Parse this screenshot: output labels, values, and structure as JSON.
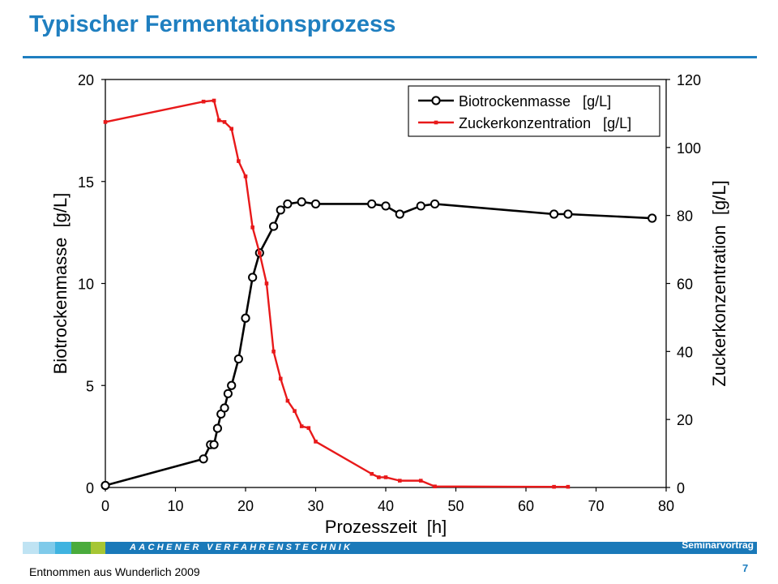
{
  "slide": {
    "title": "Typischer Fermentationsprozess",
    "brand": "AACHENER VERFAHRENSTECHNIK",
    "footer_right": "Seminarvortrag",
    "source": "Entnommen aus Wunderlich 2009",
    "page_number": "7",
    "accent_color": "#1f7fc0",
    "footer_colors": [
      "#bfe3f3",
      "#7fcaea",
      "#3fb3e0",
      "#4aab3c",
      "#a6c634"
    ]
  },
  "chart_data": {
    "type": "line",
    "xlabel": "Prozesszeit  [h]",
    "ylabel": "Biotrockenmasse  [g/L]",
    "y2label": "Zuckerkonzentration  [g/L]",
    "xlim": [
      0,
      80
    ],
    "ylim": [
      0,
      20
    ],
    "y2lim": [
      0,
      120
    ],
    "xticks": [
      "0",
      "10",
      "20",
      "30",
      "40",
      "50",
      "60",
      "70",
      "80"
    ],
    "yticks": [
      "0",
      "5",
      "10",
      "15",
      "20"
    ],
    "y2ticks": [
      "0",
      "20",
      "40",
      "60",
      "80",
      "100",
      "120"
    ],
    "legend_position": "top-right",
    "grid": false,
    "series": [
      {
        "name": "Biotrockenmasse   [g/L]",
        "axis": "left",
        "color": "#000000",
        "marker": "open-circle",
        "x": [
          0,
          14,
          15,
          15.5,
          16,
          16.5,
          17,
          17.5,
          18,
          19,
          20,
          21,
          22,
          24,
          25,
          26,
          28,
          30,
          38,
          40,
          42,
          45,
          47,
          64,
          66,
          78
        ],
        "y": [
          0.1,
          1.4,
          2.1,
          2.1,
          2.9,
          3.6,
          3.9,
          4.6,
          5.0,
          6.3,
          8.3,
          10.3,
          11.5,
          12.8,
          13.6,
          13.9,
          14.0,
          13.9,
          13.9,
          13.8,
          13.4,
          13.8,
          13.9,
          13.4,
          13.4,
          13.2
        ]
      },
      {
        "name": "Zuckerkonzentration   [g/L]",
        "axis": "right",
        "color": "#e8191a",
        "marker": "small-star",
        "x": [
          0,
          14,
          15.5,
          16.2,
          17,
          18,
          19,
          20,
          21,
          22,
          23,
          24,
          25,
          26,
          27,
          28,
          29,
          30,
          38,
          39,
          40,
          42,
          45,
          47,
          64,
          66
        ],
        "y": [
          107.5,
          113.5,
          113.8,
          108,
          107.5,
          105.5,
          96,
          91.5,
          76.5,
          69,
          60,
          40,
          32,
          25.5,
          22.5,
          18,
          17.5,
          13.5,
          4,
          3,
          3,
          2,
          2,
          0.3,
          0.2,
          0.2
        ]
      }
    ]
  }
}
